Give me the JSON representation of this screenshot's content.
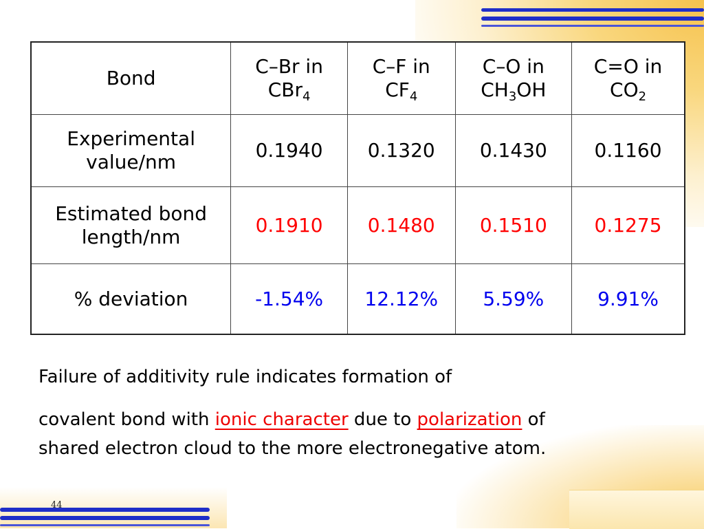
{
  "table": {
    "headers": [
      {
        "label": "Bond"
      },
      {
        "pre": "C",
        "bond": "–",
        "post": "Br in",
        "line2": "CBr",
        "sub": "4",
        "tail": ""
      },
      {
        "pre": "C",
        "bond": "–",
        "post": "F in",
        "line2": "CF",
        "sub": "4",
        "tail": ""
      },
      {
        "pre": "C",
        "bond": "–",
        "post": "O in",
        "line2": "CH",
        "sub": "3",
        "tail": "OH"
      },
      {
        "pre": "C",
        "bond": "=",
        "post": "O in",
        "line2": "CO",
        "sub": "2",
        "tail": ""
      }
    ],
    "rows": [
      {
        "label_line1": "Experimental",
        "label_line2": "value/nm",
        "values": [
          "0.1940",
          "0.1320",
          "0.1430",
          "0.1160"
        ],
        "color": "#000000"
      },
      {
        "label_line1": "Estimated bond",
        "label_line2": "length/nm",
        "values": [
          "0.1910",
          "0.1480",
          "0.1510",
          "0.1275"
        ],
        "color": "#ff0000"
      },
      {
        "label_line1": "% deviation",
        "label_line2": "",
        "values": [
          "-1.54%",
          "12.12%",
          "5.59%",
          "9.91%"
        ],
        "color": "#0000ee"
      }
    ]
  },
  "text": {
    "line1": "Failure of additivity rule indicates formation of",
    "line2_a": "covalent bond with ",
    "line2_highlight1": "ionic character",
    "line2_b": " due to ",
    "line2_highlight2": "polarization",
    "line2_c": " of",
    "line3": "shared electron cloud to the more electronegative atom."
  },
  "page_number": "44",
  "colors": {
    "accent_blue": "#1f2ec8",
    "accent_gold": "#f6c24d",
    "highlight_red": "#ee0000"
  }
}
